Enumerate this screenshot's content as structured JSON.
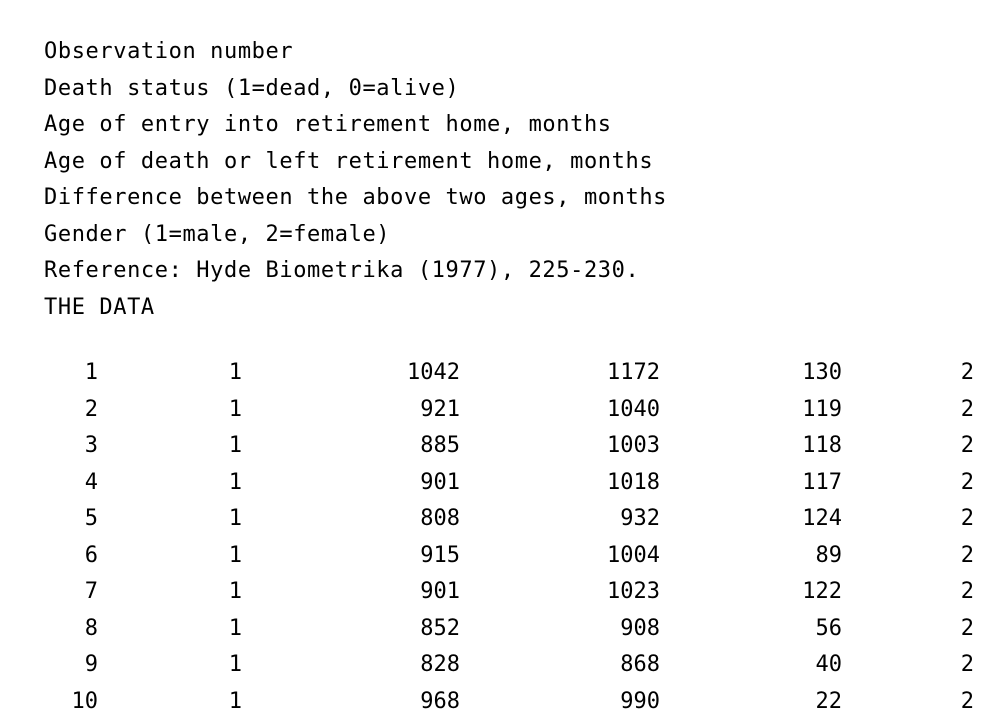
{
  "header_lines": [
    "Observation number",
    "Death status (1=dead, 0=alive)",
    "Age of entry into retirement home, months",
    "Age of death or left retirement home, months",
    "Difference between the above two ages, months",
    "Gender (1=male, 2=female)",
    "Reference: Hyde Biometrika (1977), 225-230.",
    "THE DATA"
  ],
  "rows": [
    [
      "1",
      "1",
      "1042",
      "1172",
      "130",
      "2"
    ],
    [
      "2",
      "1",
      "921",
      "1040",
      "119",
      "2"
    ],
    [
      "3",
      "1",
      "885",
      "1003",
      "118",
      "2"
    ],
    [
      "4",
      "1",
      "901",
      "1018",
      "117",
      "2"
    ],
    [
      "5",
      "1",
      "808",
      "932",
      "124",
      "2"
    ],
    [
      "6",
      "1",
      "915",
      "1004",
      "89",
      "2"
    ],
    [
      "7",
      "1",
      "901",
      "1023",
      "122",
      "2"
    ],
    [
      "8",
      "1",
      "852",
      "908",
      "56",
      "2"
    ],
    [
      "9",
      "1",
      "828",
      "868",
      "40",
      "2"
    ],
    [
      "10",
      "1",
      "968",
      "990",
      "22",
      "2"
    ]
  ]
}
